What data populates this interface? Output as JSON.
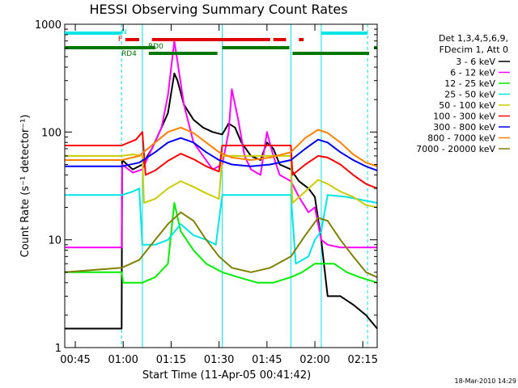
{
  "chart_data": {
    "type": "line",
    "title": "HESSI Observing Summary Count Rates",
    "xlabel": "Start Time (11-Apr-05 00:41:42)",
    "ylabel": "Count Rate (s⁻¹ detector⁻¹)",
    "y_scale": "log",
    "ylim": [
      1,
      1000
    ],
    "xlim": [
      "00:41:42",
      "02:19:30"
    ],
    "x_tick_labels": [
      "00:45",
      "01:00",
      "01:15",
      "01:30",
      "01:45",
      "02:00",
      "02:15"
    ],
    "y_tick_labels": [
      "1",
      "10",
      "100",
      "1000"
    ],
    "legend": {
      "header": [
        "Det 1,3,4,5,6,9,",
        "FDecim 1, Att 0"
      ],
      "placement": "right"
    },
    "footer_timestamp": "18-Mar-2010 14:29",
    "flags": {
      "N": {
        "label": "N",
        "color": "#00e5e5",
        "intervals": [
          [
            "00:41:42",
            "00:59:30"
          ],
          [
            "02:02:00",
            "02:16:30"
          ]
        ]
      },
      "F": {
        "label": "F",
        "color": "#e00000",
        "intervals": [
          [
            "01:00:40",
            "01:05:00"
          ],
          [
            "01:09:00",
            "01:46:00"
          ],
          [
            "01:47:00",
            "01:51:00"
          ],
          [
            "01:55:00",
            "01:56:30"
          ]
        ]
      },
      "RD0": {
        "label": "RD0",
        "color": "#007700",
        "intervals": [
          [
            "00:41:42",
            "01:10:00"
          ],
          [
            "01:31:00",
            "01:52:00"
          ],
          [
            "02:18:30",
            "02:19:30"
          ]
        ]
      },
      "RD4": {
        "label": "RD4",
        "color": "#007700",
        "intervals": [
          [
            "01:08:00",
            "01:29:30"
          ],
          [
            "01:53:00",
            "02:17:00"
          ]
        ]
      }
    },
    "vertical_markers": {
      "dashed": [
        "00:59:30",
        "02:16:30"
      ],
      "solid": [
        "01:06:00",
        "01:31:00",
        "01:52:30",
        "02:02:00"
      ]
    },
    "series": [
      {
        "name": "3 - 6 keV",
        "color": "#000000",
        "points": [
          [
            "00:41:42",
            1.5
          ],
          [
            "00:59:30",
            1.5
          ],
          [
            "00:59:40",
            55
          ],
          [
            "01:03:00",
            45
          ],
          [
            "01:06:00",
            50
          ],
          [
            "01:09:00",
            70
          ],
          [
            "01:12:00",
            110
          ],
          [
            "01:14:00",
            150
          ],
          [
            "01:16:00",
            350
          ],
          [
            "01:17:00",
            300
          ],
          [
            "01:19:00",
            180
          ],
          [
            "01:22:00",
            130
          ],
          [
            "01:25:00",
            110
          ],
          [
            "01:28:00",
            100
          ],
          [
            "01:31:00",
            95
          ],
          [
            "01:33:00",
            120
          ],
          [
            "01:35:00",
            110
          ],
          [
            "01:37:00",
            80
          ],
          [
            "01:40:00",
            60
          ],
          [
            "01:43:00",
            55
          ],
          [
            "01:45:00",
            80
          ],
          [
            "01:47:00",
            70
          ],
          [
            "01:49:00",
            50
          ],
          [
            "01:52:30",
            45
          ],
          [
            "01:55:00",
            35
          ],
          [
            "01:58:00",
            30
          ],
          [
            "02:00:00",
            25
          ],
          [
            "02:02:00",
            10
          ],
          [
            "02:04:00",
            3
          ],
          [
            "02:08:00",
            3
          ],
          [
            "02:12:00",
            2.5
          ],
          [
            "02:16:00",
            2
          ],
          [
            "02:19:30",
            1.5
          ]
        ]
      },
      {
        "name": "6 - 12 keV",
        "color": "#ff00ff",
        "points": [
          [
            "00:41:42",
            8.5
          ],
          [
            "00:59:30",
            8.5
          ],
          [
            "00:59:40",
            50
          ],
          [
            "01:03:00",
            42
          ],
          [
            "01:06:00",
            45
          ],
          [
            "01:09:00",
            70
          ],
          [
            "01:12:00",
            110
          ],
          [
            "01:14:00",
            220
          ],
          [
            "01:16:00",
            700
          ],
          [
            "01:17:00",
            450
          ],
          [
            "01:19:00",
            180
          ],
          [
            "01:22:00",
            80
          ],
          [
            "01:25:00",
            60
          ],
          [
            "01:28:00",
            45
          ],
          [
            "01:31:00",
            50
          ],
          [
            "01:33:00",
            100
          ],
          [
            "01:34:00",
            250
          ],
          [
            "01:36:00",
            130
          ],
          [
            "01:38:00",
            60
          ],
          [
            "01:40:00",
            45
          ],
          [
            "01:43:00",
            40
          ],
          [
            "01:45:00",
            100
          ],
          [
            "01:47:00",
            60
          ],
          [
            "01:49:00",
            40
          ],
          [
            "01:52:30",
            35
          ],
          [
            "01:55:00",
            25
          ],
          [
            "01:58:00",
            18
          ],
          [
            "02:00:00",
            20
          ],
          [
            "02:02:00",
            10
          ],
          [
            "02:04:00",
            9
          ],
          [
            "02:08:00",
            8.5
          ],
          [
            "02:12:00",
            8.5
          ],
          [
            "02:16:00",
            8.5
          ],
          [
            "02:19:30",
            8.5
          ]
        ]
      },
      {
        "name": "12 - 25 keV",
        "color": "#00ee00",
        "points": [
          [
            "00:41:42",
            5
          ],
          [
            "00:59:30",
            5
          ],
          [
            "01:00:00",
            4
          ],
          [
            "01:06:00",
            4
          ],
          [
            "01:10:00",
            4.5
          ],
          [
            "01:14:00",
            6
          ],
          [
            "01:16:00",
            22
          ],
          [
            "01:18:00",
            12
          ],
          [
            "01:22:00",
            8
          ],
          [
            "01:26:00",
            6
          ],
          [
            "01:31:00",
            5
          ],
          [
            "01:36:00",
            4.5
          ],
          [
            "01:42:00",
            4
          ],
          [
            "01:47:00",
            4
          ],
          [
            "01:52:30",
            4.5
          ],
          [
            "01:56:00",
            5
          ],
          [
            "02:00:00",
            6
          ],
          [
            "02:02:00",
            6
          ],
          [
            "02:06:00",
            6
          ],
          [
            "02:10:00",
            5
          ],
          [
            "02:14:00",
            4.5
          ],
          [
            "02:19:30",
            4
          ]
        ]
      },
      {
        "name": "25 - 50 keV",
        "color": "#00e5e5",
        "points": [
          [
            "00:41:42",
            26
          ],
          [
            "00:59:30",
            26
          ],
          [
            "01:03:00",
            28
          ],
          [
            "01:05:00",
            30
          ],
          [
            "01:06:00",
            9
          ],
          [
            "01:10:00",
            9
          ],
          [
            "01:14:00",
            10
          ],
          [
            "01:18:00",
            14
          ],
          [
            "01:22:00",
            11
          ],
          [
            "01:26:00",
            10
          ],
          [
            "01:29:00",
            9
          ],
          [
            "01:31:00",
            26
          ],
          [
            "01:40:00",
            26
          ],
          [
            "01:52:30",
            26
          ],
          [
            "01:54:00",
            6
          ],
          [
            "01:58:00",
            7
          ],
          [
            "02:00:00",
            10
          ],
          [
            "02:02:00",
            12
          ],
          [
            "02:04:00",
            26
          ],
          [
            "02:10:00",
            25
          ],
          [
            "02:16:00",
            23
          ],
          [
            "02:19:30",
            22
          ]
        ]
      },
      {
        "name": "50 - 100 keV",
        "color": "#cccc00",
        "points": [
          [
            "00:41:42",
            60
          ],
          [
            "00:59:30",
            60
          ],
          [
            "01:03:00",
            62
          ],
          [
            "01:06:00",
            60
          ],
          [
            "01:06:30",
            22
          ],
          [
            "01:10:00",
            24
          ],
          [
            "01:14:00",
            30
          ],
          [
            "01:18:00",
            35
          ],
          [
            "01:22:00",
            31
          ],
          [
            "01:26:00",
            27
          ],
          [
            "01:30:00",
            24
          ],
          [
            "01:31:00",
            60
          ],
          [
            "01:40:00",
            60
          ],
          [
            "01:52:30",
            60
          ],
          [
            "01:53:00",
            22
          ],
          [
            "01:57:00",
            28
          ],
          [
            "02:01:00",
            36
          ],
          [
            "02:04:00",
            33
          ],
          [
            "02:08:00",
            28
          ],
          [
            "02:12:00",
            25
          ],
          [
            "02:16:00",
            21
          ],
          [
            "02:19:30",
            20
          ]
        ]
      },
      {
        "name": "100 - 300 keV",
        "color": "#ff0000",
        "points": [
          [
            "00:41:42",
            75
          ],
          [
            "00:59:30",
            75
          ],
          [
            "01:04:00",
            85
          ],
          [
            "01:06:00",
            100
          ],
          [
            "01:07:00",
            40
          ],
          [
            "01:10:00",
            44
          ],
          [
            "01:14:00",
            54
          ],
          [
            "01:18:00",
            63
          ],
          [
            "01:22:00",
            56
          ],
          [
            "01:26:00",
            48
          ],
          [
            "01:30:00",
            43
          ],
          [
            "01:31:00",
            75
          ],
          [
            "01:40:00",
            75
          ],
          [
            "01:52:30",
            75
          ],
          [
            "01:53:00",
            40
          ],
          [
            "01:57:00",
            50
          ],
          [
            "02:01:00",
            60
          ],
          [
            "02:04:00",
            58
          ],
          [
            "02:08:00",
            50
          ],
          [
            "02:12:00",
            40
          ],
          [
            "02:16:00",
            33
          ],
          [
            "02:19:30",
            30
          ]
        ]
      },
      {
        "name": "300 - 800 keV",
        "color": "#0000ff",
        "points": [
          [
            "00:41:42",
            48
          ],
          [
            "00:59:30",
            48
          ],
          [
            "01:05:00",
            52
          ],
          [
            "01:10:00",
            65
          ],
          [
            "01:14:00",
            80
          ],
          [
            "01:18:00",
            88
          ],
          [
            "01:22:00",
            80
          ],
          [
            "01:26:00",
            65
          ],
          [
            "01:30:00",
            55
          ],
          [
            "01:34:00",
            50
          ],
          [
            "01:40:00",
            48
          ],
          [
            "01:46:00",
            50
          ],
          [
            "01:52:30",
            55
          ],
          [
            "01:57:00",
            70
          ],
          [
            "02:01:00",
            85
          ],
          [
            "02:04:00",
            80
          ],
          [
            "02:08:00",
            65
          ],
          [
            "02:12:00",
            55
          ],
          [
            "02:16:00",
            48
          ],
          [
            "02:19:30",
            44
          ]
        ]
      },
      {
        "name": "800 - 7000 keV",
        "color": "#ff8000",
        "points": [
          [
            "00:41:42",
            55
          ],
          [
            "00:59:30",
            55
          ],
          [
            "01:05:00",
            60
          ],
          [
            "01:10:00",
            80
          ],
          [
            "01:14:00",
            100
          ],
          [
            "01:18:00",
            110
          ],
          [
            "01:22:00",
            98
          ],
          [
            "01:26:00",
            80
          ],
          [
            "01:30:00",
            65
          ],
          [
            "01:34:00",
            58
          ],
          [
            "01:40:00",
            55
          ],
          [
            "01:46:00",
            58
          ],
          [
            "01:52:30",
            65
          ],
          [
            "01:57:00",
            88
          ],
          [
            "02:01:00",
            105
          ],
          [
            "02:04:00",
            98
          ],
          [
            "02:08:00",
            80
          ],
          [
            "02:12:00",
            62
          ],
          [
            "02:16:00",
            52
          ],
          [
            "02:19:30",
            48
          ]
        ]
      },
      {
        "name": "7000 - 20000 keV",
        "color": "#808000",
        "points": [
          [
            "00:41:42",
            5
          ],
          [
            "00:59:30",
            5.5
          ],
          [
            "01:05:00",
            6.5
          ],
          [
            "01:10:00",
            10
          ],
          [
            "01:14:00",
            14
          ],
          [
            "01:18:00",
            18
          ],
          [
            "01:22:00",
            15
          ],
          [
            "01:26:00",
            10
          ],
          [
            "01:30:00",
            7
          ],
          [
            "01:34:00",
            5.5
          ],
          [
            "01:40:00",
            5
          ],
          [
            "01:46:00",
            5.5
          ],
          [
            "01:52:30",
            7
          ],
          [
            "01:57:00",
            11
          ],
          [
            "02:01:00",
            16
          ],
          [
            "02:04:00",
            15
          ],
          [
            "02:08:00",
            10
          ],
          [
            "02:12:00",
            7
          ],
          [
            "02:16:00",
            5
          ],
          [
            "02:19:30",
            4.5
          ]
        ]
      }
    ]
  }
}
